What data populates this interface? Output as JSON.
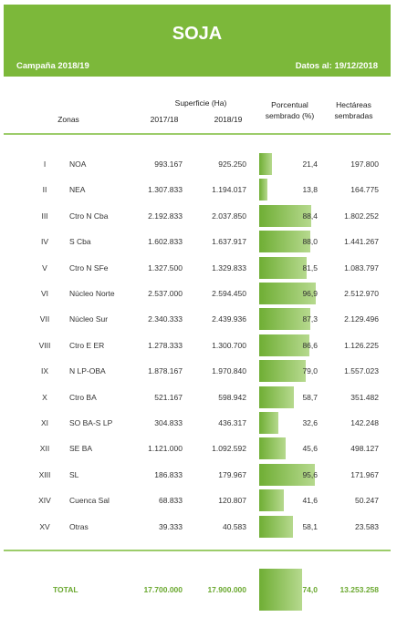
{
  "header": {
    "title": "SOJA",
    "campaign": "Campaña 2018/19",
    "date": "Datos al: 19/12/2018"
  },
  "columns": {
    "zonas": "Zonas",
    "superficie": "Superficie (Ha)",
    "year1": "2017/18",
    "year2": "2018/19",
    "porcentual": "Porcentual",
    "sembrado": "sembrado (%)",
    "hectareas": "Hectáreas",
    "sembradas": "sembradas"
  },
  "rows": [
    {
      "roman": "I",
      "zone": "NOA",
      "v1": "993.167",
      "v2": "925.250",
      "pct": "21,4",
      "pct_value": 21.4,
      "ha": "197.800"
    },
    {
      "roman": "II",
      "zone": "NEA",
      "v1": "1.307.833",
      "v2": "1.194.017",
      "pct": "13,8",
      "pct_value": 13.8,
      "ha": "164.775"
    },
    {
      "roman": "III",
      "zone": "Ctro N Cba",
      "v1": "2.192.833",
      "v2": "2.037.850",
      "pct": "88,4",
      "pct_value": 88.4,
      "ha": "1.802.252"
    },
    {
      "roman": "IV",
      "zone": "S Cba",
      "v1": "1.602.833",
      "v2": "1.637.917",
      "pct": "88,0",
      "pct_value": 88.0,
      "ha": "1.441.267"
    },
    {
      "roman": "V",
      "zone": "Ctro N SFe",
      "v1": "1.327.500",
      "v2": "1.329.833",
      "pct": "81,5",
      "pct_value": 81.5,
      "ha": "1.083.797"
    },
    {
      "roman": "VI",
      "zone": "Núcleo Norte",
      "v1": "2.537.000",
      "v2": "2.594.450",
      "pct": "96,9",
      "pct_value": 96.9,
      "ha": "2.512.970"
    },
    {
      "roman": "VII",
      "zone": "Núcleo Sur",
      "v1": "2.340.333",
      "v2": "2.439.936",
      "pct": "87,3",
      "pct_value": 87.3,
      "ha": "2.129.496"
    },
    {
      "roman": "VIII",
      "zone": "Ctro E ER",
      "v1": "1.278.333",
      "v2": "1.300.700",
      "pct": "86,6",
      "pct_value": 86.6,
      "ha": "1.126.225"
    },
    {
      "roman": "IX",
      "zone": "N LP-OBA",
      "v1": "1.878.167",
      "v2": "1.970.840",
      "pct": "79,0",
      "pct_value": 79.0,
      "ha": "1.557.023"
    },
    {
      "roman": "X",
      "zone": "Ctro BA",
      "v1": "521.167",
      "v2": "598.942",
      "pct": "58,7",
      "pct_value": 58.7,
      "ha": "351.482"
    },
    {
      "roman": "XI",
      "zone": "SO BA-S LP",
      "v1": "304.833",
      "v2": "436.317",
      "pct": "32,6",
      "pct_value": 32.6,
      "ha": "142.248"
    },
    {
      "roman": "XII",
      "zone": "SE BA",
      "v1": "1.121.000",
      "v2": "1.092.592",
      "pct": "45,6",
      "pct_value": 45.6,
      "ha": "498.127"
    },
    {
      "roman": "XIII",
      "zone": "SL",
      "v1": "186.833",
      "v2": "179.967",
      "pct": "95,6",
      "pct_value": 95.6,
      "ha": "171.967"
    },
    {
      "roman": "XIV",
      "zone": "Cuenca Sal",
      "v1": "68.833",
      "v2": "120.807",
      "pct": "41,6",
      "pct_value": 41.6,
      "ha": "50.247"
    },
    {
      "roman": "XV",
      "zone": "Otras",
      "v1": "39.333",
      "v2": "40.583",
      "pct": "58,1",
      "pct_value": 58.1,
      "ha": "23.583"
    }
  ],
  "total": {
    "label": "TOTAL",
    "v1": "17.700.000",
    "v2": "17.900.000",
    "pct": "74,0",
    "pct_value": 74.0,
    "ha": "13.253.258"
  },
  "colors": {
    "accent": "#7cb83a",
    "total_text": "#6aa82f"
  }
}
